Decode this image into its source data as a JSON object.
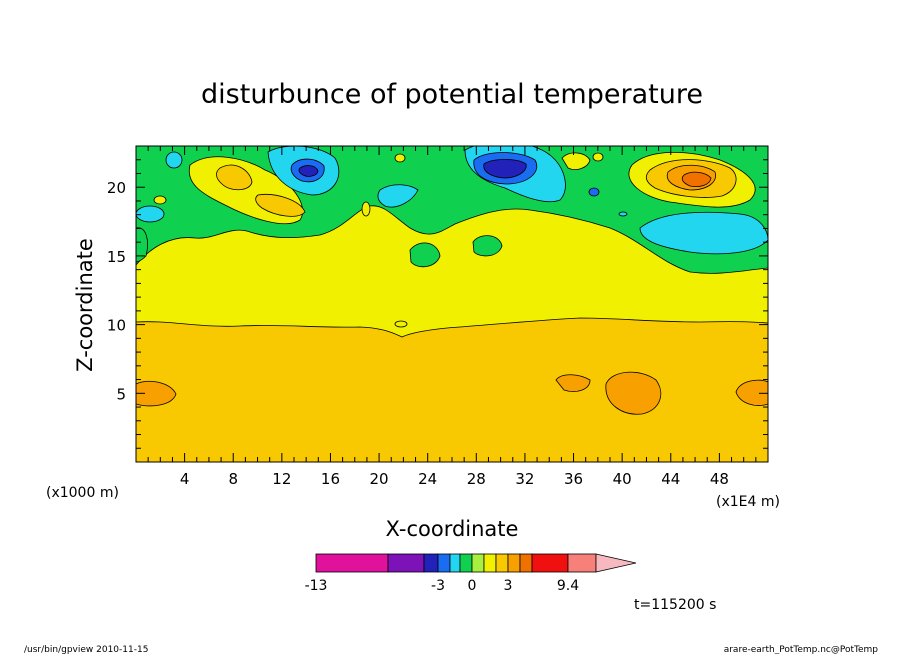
{
  "chart_data": {
    "type": "heatmap",
    "subtype": "filled-contour",
    "title": "disturbunce of potential temperature",
    "xlabel": "X-coordinate",
    "ylabel": "Z-coordinate",
    "x_unit_left": "(x1000 m)",
    "x_unit_right": "(x1E4 m)",
    "xlim": [
      0,
      52
    ],
    "ylim": [
      0,
      23
    ],
    "x_ticks": [
      4,
      8,
      12,
      16,
      20,
      24,
      28,
      32,
      36,
      40,
      44,
      48
    ],
    "y_ticks": [
      5,
      10,
      15,
      20
    ],
    "bands": [
      {
        "name": "yellow-orange base",
        "range": [
          1,
          2
        ],
        "z_from": 0,
        "z_to": 10.2
      },
      {
        "name": "yellow layer",
        "range": [
          0.5,
          1
        ],
        "z_from": 10.2,
        "z_to": 15
      },
      {
        "name": "green layer",
        "range": [
          0,
          0.5
        ],
        "z_from": 15,
        "z_to": 23
      }
    ],
    "features": [
      {
        "kind": "low",
        "level": -3,
        "x": 29.5,
        "z": 21.2
      },
      {
        "kind": "low",
        "level": -2.5,
        "x": 14.5,
        "z": 21.0
      },
      {
        "kind": "high",
        "level": 3,
        "x": 46,
        "z": 20.5
      },
      {
        "kind": "high",
        "level": 2,
        "x": 40,
        "z": 5
      },
      {
        "kind": "high",
        "level": 2,
        "x": 1.5,
        "z": 5
      },
      {
        "kind": "high",
        "level": 2,
        "x": 35,
        "z": 5.8
      },
      {
        "kind": "high",
        "level": 2,
        "x": 51,
        "z": 5
      }
    ],
    "colorbar": {
      "colors": [
        "#e0129c",
        "#7d12b8",
        "#2222bb",
        "#1a6cf0",
        "#22d6f0",
        "#10d050",
        "#a8f040",
        "#f0f000",
        "#f8c800",
        "#f8a000",
        "#f07000",
        "#f01010",
        "#f8807a",
        "#f8b8c0"
      ],
      "labels": [
        "-13",
        "-3",
        "0",
        "3",
        "9.4"
      ]
    },
    "time_label": "t=115200 s"
  },
  "footer": {
    "left": "/usr/bin/gpview   2010-11-15",
    "right": "arare-earth_PotTemp.nc@PotTemp"
  }
}
